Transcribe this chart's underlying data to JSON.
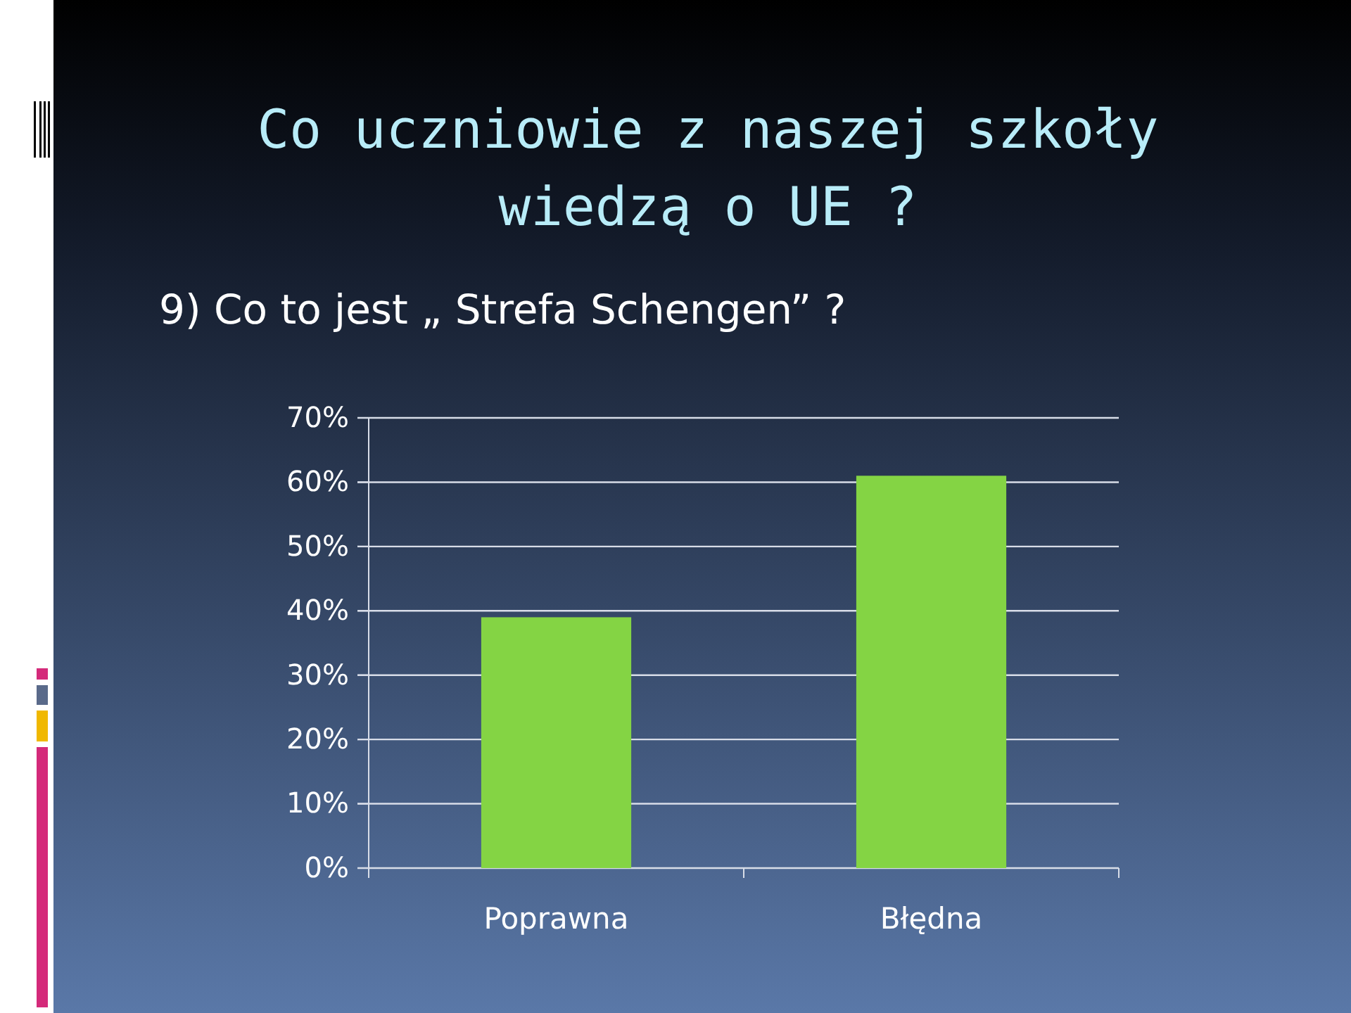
{
  "chart_data": {
    "type": "bar",
    "title": "Co uczniowie z naszej szkoły wiedzą o UE ?",
    "subtitle": "9) Co to jest „ Strefa Schengen” ?",
    "categories": [
      "Poprawna",
      "Błędna"
    ],
    "values": [
      39,
      61
    ],
    "color": "#84d444",
    "ylim": [
      0,
      70
    ],
    "yticks": [
      {
        "value": 0,
        "label": "0%"
      },
      {
        "value": 10,
        "label": "10%"
      },
      {
        "value": 20,
        "label": "20%"
      },
      {
        "value": 30,
        "label": "30%"
      },
      {
        "value": 40,
        "label": "40%"
      },
      {
        "value": 50,
        "label": "50%"
      },
      {
        "value": 60,
        "label": "60%"
      },
      {
        "value": 70,
        "label": "70%"
      }
    ],
    "grid": "y"
  }
}
